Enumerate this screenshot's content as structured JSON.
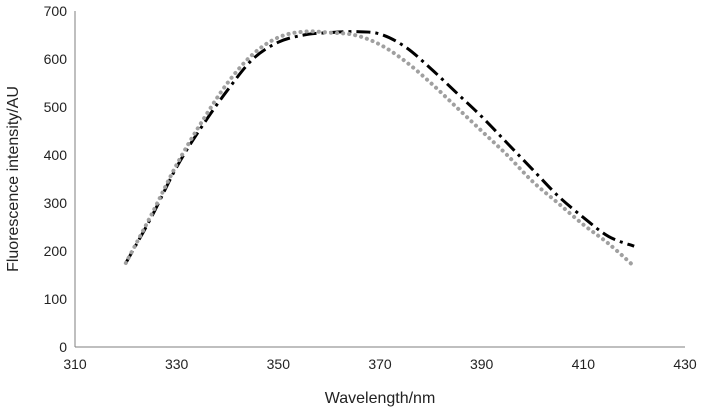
{
  "chart_data": {
    "type": "line",
    "title": "",
    "xlabel": "Wavelength/nm",
    "ylabel": "Fluorescence intensity/AU",
    "xlim": [
      310,
      430
    ],
    "ylim": [
      0,
      700
    ],
    "xticks": [
      310,
      330,
      350,
      370,
      390,
      410,
      430
    ],
    "yticks": [
      0,
      100,
      200,
      300,
      400,
      500,
      600,
      700
    ],
    "xtick_labels": [
      "310",
      "330",
      "350",
      "370",
      "390",
      "410",
      "430"
    ],
    "ytick_labels": [
      "0",
      "100",
      "200",
      "300",
      "400",
      "500",
      "600",
      "700"
    ],
    "grid": false,
    "legend": "none",
    "series": [
      {
        "style": "dash-dot",
        "color": "#000000",
        "x": [
          320,
          325,
          330,
          335,
          340,
          345,
          350,
          355,
          360,
          365,
          370,
          375,
          380,
          385,
          390,
          395,
          400,
          405,
          410,
          415,
          420
        ],
        "y": [
          175,
          270,
          375,
          460,
          535,
          600,
          635,
          650,
          655,
          657,
          652,
          625,
          580,
          530,
          480,
          425,
          370,
          315,
          270,
          230,
          210
        ]
      },
      {
        "style": "dotted",
        "color": "#a0a0a0",
        "x": [
          320,
          325,
          330,
          335,
          340,
          345,
          350,
          355,
          360,
          365,
          370,
          375,
          380,
          385,
          390,
          395,
          400,
          405,
          410,
          415,
          420
        ],
        "y": [
          175,
          275,
          380,
          470,
          550,
          610,
          645,
          657,
          655,
          650,
          630,
          595,
          550,
          500,
          450,
          400,
          345,
          300,
          255,
          215,
          168
        ]
      }
    ]
  }
}
